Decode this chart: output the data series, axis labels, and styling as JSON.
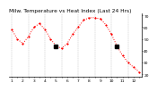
{
  "title": "Milw. Temperature vs Heat Index (Last 24 Hrs)",
  "line_color": "#ff0000",
  "marker_color": "#000000",
  "bg_color": "#ffffff",
  "grid_color": "#888888",
  "y_values": [
    58,
    50,
    46,
    52,
    60,
    63,
    58,
    50,
    44,
    42,
    46,
    54,
    60,
    66,
    68,
    68,
    67,
    62,
    54,
    44,
    36,
    30,
    26,
    22
  ],
  "x_labels": [
    "1",
    "",
    "2",
    "",
    "3",
    "",
    "4",
    "",
    "5",
    "",
    "6",
    "",
    "7",
    "",
    "8",
    "",
    "9",
    "",
    "10",
    "",
    "11",
    "",
    "12",
    ""
  ],
  "special_points_idx": [
    8,
    19
  ],
  "ylim": [
    18,
    72
  ],
  "y_ticks": [
    20,
    30,
    40,
    50,
    60,
    70
  ],
  "n_points": 24,
  "grid_every": 3,
  "title_fontsize": 4.2,
  "tick_fontsize": 3.2,
  "line_width": 0.7,
  "marker_size": 1.2,
  "special_marker_size": 2.5
}
